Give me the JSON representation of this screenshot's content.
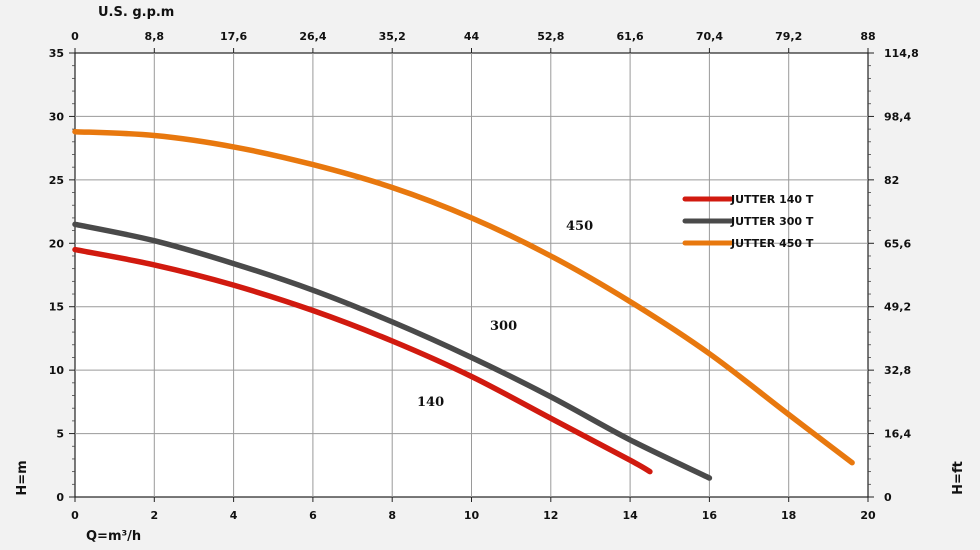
{
  "chart_data": {
    "type": "line",
    "xlabel_bottom": "Q=m³/h",
    "xlabel_top": "U.S. g.p.m",
    "ylabel_left": "H=m",
    "ylabel_right": "H=ft",
    "xlim": [
      0,
      20
    ],
    "ylim": [
      0,
      35
    ],
    "x_ticks": [
      "0",
      "2",
      "4",
      "6",
      "8",
      "10",
      "12",
      "14",
      "16",
      "18",
      "20"
    ],
    "y_ticks": [
      "0",
      "5",
      "10",
      "15",
      "20",
      "25",
      "30",
      "35"
    ],
    "top_ticks": [
      "0",
      "8,8",
      "17,6",
      "26,4",
      "35,2",
      "44",
      "52,8",
      "61,6",
      "70,4",
      "79,2",
      "88"
    ],
    "right_ticks": [
      "0",
      "16,4",
      "32,8",
      "49,2",
      "65,6",
      "82",
      "98,4",
      "114,8"
    ],
    "grid": true,
    "legend_position": "right",
    "series": [
      {
        "name": "JUTTER 140 T",
        "label": "140",
        "color": "#d11a0f",
        "x": [
          0,
          2,
          4,
          6,
          8,
          10,
          12,
          14,
          14.5
        ],
        "y": [
          19.5,
          18.3,
          16.7,
          14.7,
          12.3,
          9.5,
          6.2,
          2.9,
          2.0
        ]
      },
      {
        "name": "JUTTER 300 T",
        "label": "300",
        "color": "#4a4a4a",
        "x": [
          0,
          2,
          4,
          6,
          8,
          10,
          12,
          14,
          16
        ],
        "y": [
          21.5,
          20.2,
          18.4,
          16.3,
          13.8,
          11.0,
          7.9,
          4.5,
          1.5
        ]
      },
      {
        "name": "JUTTER 450 T",
        "label": "450",
        "color": "#e8780e",
        "x": [
          0,
          2,
          4,
          6,
          8,
          10,
          12,
          14,
          16,
          18,
          19.6
        ],
        "y": [
          28.8,
          28.5,
          27.6,
          26.2,
          24.4,
          22.0,
          19.0,
          15.4,
          11.3,
          6.5,
          2.7
        ]
      }
    ]
  }
}
